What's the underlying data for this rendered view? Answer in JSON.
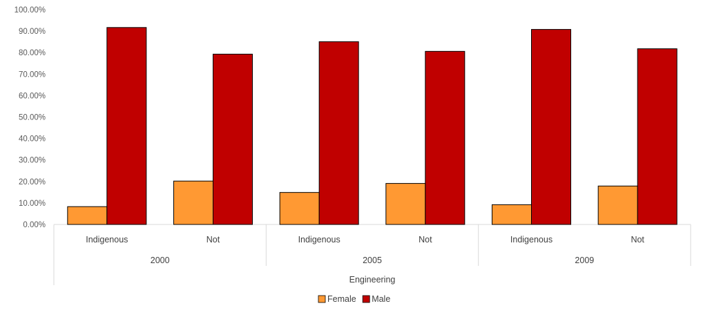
{
  "chart_data": {
    "type": "bar",
    "y_tick_labels": [
      "0.00%",
      "10.00%",
      "20.00%",
      "30.00%",
      "40.00%",
      "50.00%",
      "60.00%",
      "70.00%",
      "80.00%",
      "90.00%",
      "100.00%"
    ],
    "ylim": [
      0,
      100
    ],
    "grid": false,
    "categories": [
      {
        "year": "2000",
        "group": "Indigenous"
      },
      {
        "year": "2000",
        "group": "Not"
      },
      {
        "year": "2005",
        "group": "Indigenous"
      },
      {
        "year": "2005",
        "group": "Not"
      },
      {
        "year": "2009",
        "group": "Indigenous"
      },
      {
        "year": "2009",
        "group": "Not"
      }
    ],
    "year_labels": [
      "2000",
      "2005",
      "2009"
    ],
    "outer_label": "Engineering",
    "series": [
      {
        "name": "Female",
        "color": "#FF9933",
        "values": [
          8.3,
          20.2,
          14.9,
          19.1,
          9.2,
          17.9
        ]
      },
      {
        "name": "Male",
        "color": "#C00000",
        "values": [
          91.7,
          79.3,
          85.1,
          80.6,
          90.8,
          81.8
        ]
      }
    ],
    "legend_position": "bottom"
  }
}
